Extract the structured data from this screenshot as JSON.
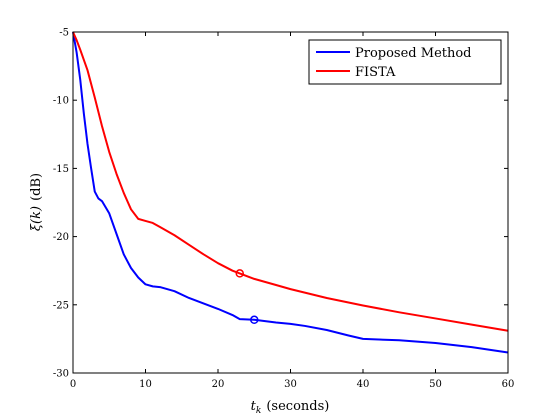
{
  "chart_data": {
    "type": "line",
    "title": "",
    "xlabel_main": "t",
    "xlabel_sub": "k",
    "xlabel_suffix": "(seconds)",
    "ylabel_main": "ξ(k)",
    "ylabel_suffix": "(dB)",
    "xlim": [
      0,
      60
    ],
    "ylim": [
      -30,
      -5
    ],
    "xticks": [
      0,
      10,
      20,
      30,
      40,
      50,
      60
    ],
    "yticks": [
      -30,
      -25,
      -20,
      -15,
      -10,
      -5
    ],
    "xtick_labels": [
      "0",
      "10",
      "20",
      "30",
      "40",
      "50",
      "60"
    ],
    "ytick_labels": [
      "-30",
      "-25",
      "-20",
      "-15",
      "-10",
      "-5"
    ],
    "grid": false,
    "legend_position": "top-right",
    "series": [
      {
        "name": "Proposed Method",
        "color": "#0000ff",
        "marker": {
          "x": 25,
          "y": -26.1
        },
        "points": [
          [
            0,
            -5
          ],
          [
            0.5,
            -6.5
          ],
          [
            1,
            -8.5
          ],
          [
            1.5,
            -11
          ],
          [
            2,
            -13.2
          ],
          [
            2.5,
            -15
          ],
          [
            3,
            -16.7
          ],
          [
            3.5,
            -17.2
          ],
          [
            4,
            -17.4
          ],
          [
            5,
            -18.3
          ],
          [
            6,
            -19.8
          ],
          [
            7,
            -21.3
          ],
          [
            8,
            -22.3
          ],
          [
            9,
            -23
          ],
          [
            10,
            -23.5
          ],
          [
            11,
            -23.65
          ],
          [
            12,
            -23.7
          ],
          [
            14,
            -24
          ],
          [
            16,
            -24.5
          ],
          [
            18,
            -24.9
          ],
          [
            20,
            -25.3
          ],
          [
            22,
            -25.75
          ],
          [
            23,
            -26.05
          ],
          [
            25,
            -26.1
          ],
          [
            28,
            -26.3
          ],
          [
            30,
            -26.4
          ],
          [
            32,
            -26.55
          ],
          [
            35,
            -26.85
          ],
          [
            38,
            -27.25
          ],
          [
            40,
            -27.5
          ],
          [
            45,
            -27.6
          ],
          [
            50,
            -27.8
          ],
          [
            55,
            -28.1
          ],
          [
            60,
            -28.5
          ]
        ]
      },
      {
        "name": "FISTA",
        "color": "#ff0000",
        "marker": {
          "x": 23,
          "y": -22.7
        },
        "points": [
          [
            0,
            -5
          ],
          [
            0.5,
            -5.6
          ],
          [
            1,
            -6.3
          ],
          [
            2,
            -7.8
          ],
          [
            3,
            -9.8
          ],
          [
            4,
            -11.9
          ],
          [
            5,
            -13.8
          ],
          [
            6,
            -15.4
          ],
          [
            7,
            -16.8
          ],
          [
            8,
            -18
          ],
          [
            9,
            -18.7
          ],
          [
            10,
            -18.85
          ],
          [
            11,
            -19
          ],
          [
            12,
            -19.3
          ],
          [
            14,
            -19.9
          ],
          [
            16,
            -20.6
          ],
          [
            18,
            -21.3
          ],
          [
            20,
            -21.95
          ],
          [
            22,
            -22.5
          ],
          [
            23,
            -22.7
          ],
          [
            25,
            -23.1
          ],
          [
            28,
            -23.55
          ],
          [
            30,
            -23.85
          ],
          [
            35,
            -24.5
          ],
          [
            40,
            -25.05
          ],
          [
            45,
            -25.55
          ],
          [
            50,
            -26
          ],
          [
            55,
            -26.45
          ],
          [
            60,
            -26.9
          ]
        ]
      }
    ]
  }
}
